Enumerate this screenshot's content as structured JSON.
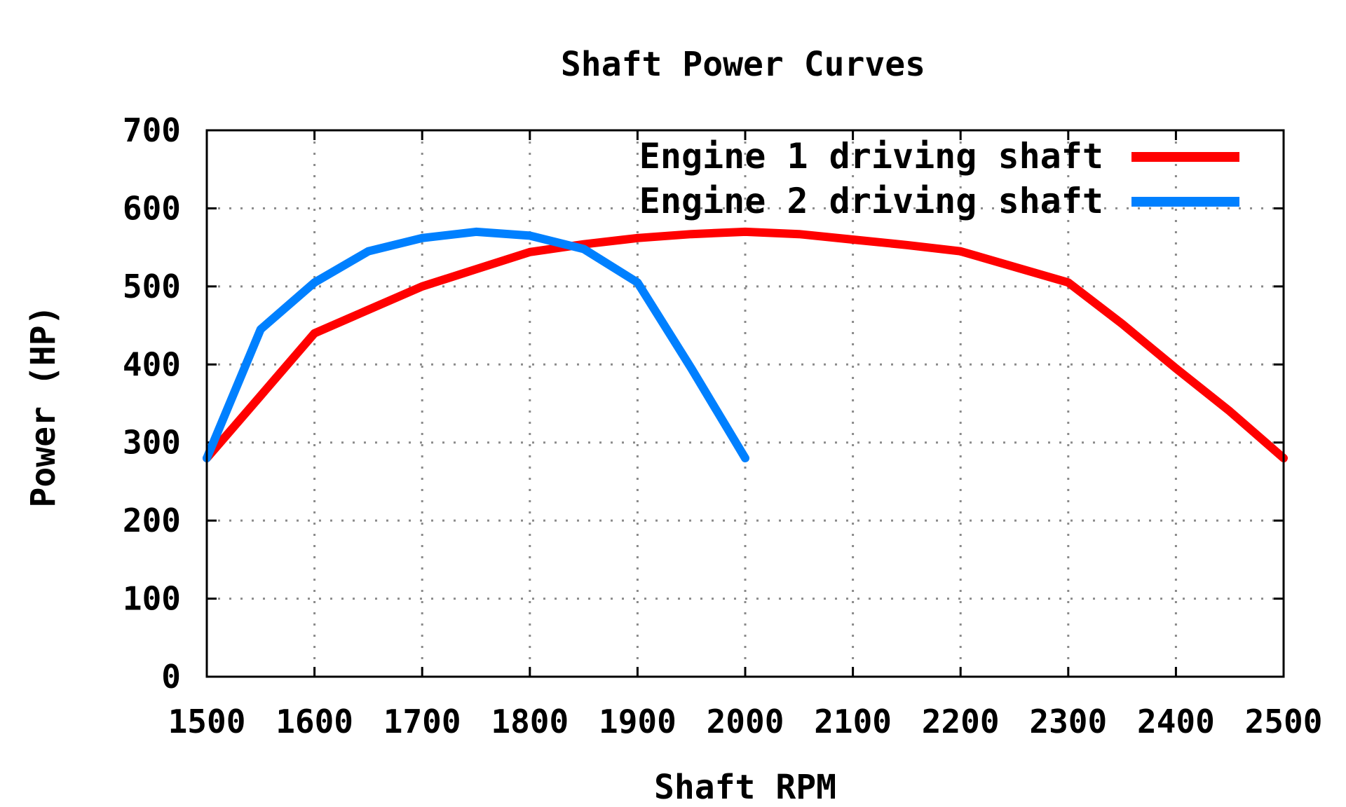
{
  "chart_data": {
    "type": "line",
    "title": "Shaft Power Curves",
    "xlabel": "Shaft RPM",
    "ylabel": "Power (HP)",
    "xlim": [
      1500,
      2500
    ],
    "ylim": [
      0,
      700
    ],
    "xticks": [
      1500,
      1600,
      1700,
      1800,
      1900,
      2000,
      2100,
      2200,
      2300,
      2400,
      2500
    ],
    "yticks": [
      0,
      100,
      200,
      300,
      400,
      500,
      600,
      700
    ],
    "grid": true,
    "legend_position": "top-right",
    "series": [
      {
        "name": "Engine 1 driving shaft",
        "color": "#ff0000",
        "points": [
          [
            1500,
            280
          ],
          [
            1550,
            360
          ],
          [
            1600,
            440
          ],
          [
            1650,
            470
          ],
          [
            1700,
            500
          ],
          [
            1750,
            522
          ],
          [
            1800,
            544
          ],
          [
            1850,
            554
          ],
          [
            1900,
            562
          ],
          [
            1950,
            567
          ],
          [
            2000,
            570
          ],
          [
            2050,
            567
          ],
          [
            2100,
            560
          ],
          [
            2150,
            553
          ],
          [
            2200,
            545
          ],
          [
            2250,
            525
          ],
          [
            2300,
            505
          ],
          [
            2350,
            452
          ],
          [
            2400,
            395
          ],
          [
            2450,
            340
          ],
          [
            2500,
            280
          ]
        ]
      },
      {
        "name": "Engine 2 driving shaft",
        "color": "#0080ff",
        "points": [
          [
            1500,
            280
          ],
          [
            1550,
            445
          ],
          [
            1600,
            505
          ],
          [
            1650,
            545
          ],
          [
            1700,
            562
          ],
          [
            1750,
            570
          ],
          [
            1800,
            565
          ],
          [
            1850,
            548
          ],
          [
            1900,
            505
          ],
          [
            1950,
            395
          ],
          [
            2000,
            280
          ]
        ]
      }
    ]
  }
}
